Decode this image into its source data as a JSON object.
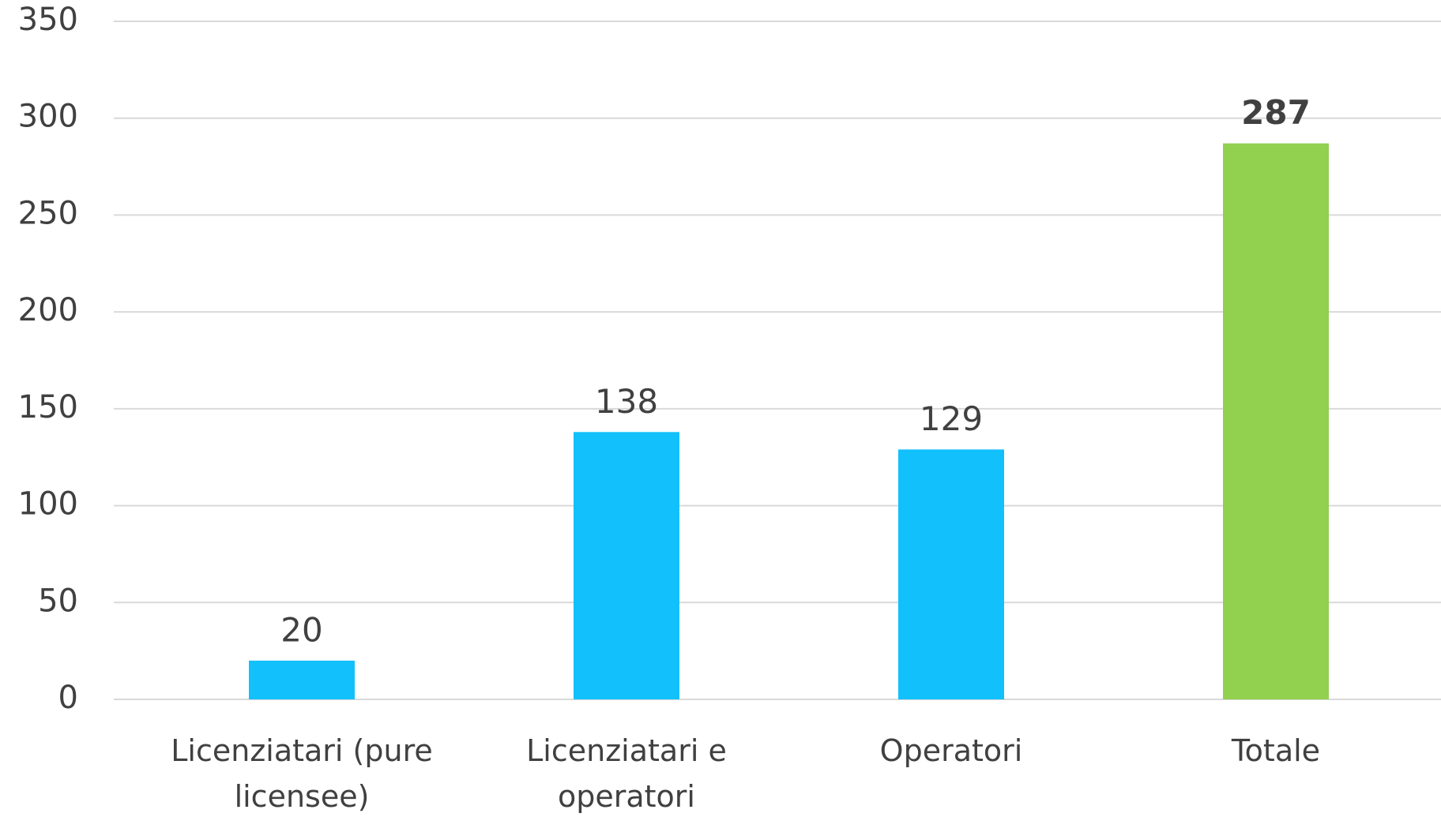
{
  "chart_data": {
    "type": "bar",
    "categories": [
      "Licenziatari (pure licensee)",
      "Licenziatari e operatori",
      "Operatori",
      "Totale"
    ],
    "values": [
      20,
      138,
      129,
      287
    ],
    "colors": [
      "#12c0fb",
      "#12c0fb",
      "#12c0fb",
      "#92d050"
    ],
    "ylim": [
      0,
      350
    ],
    "yticks": [
      0,
      50,
      100,
      150,
      200,
      250,
      300,
      350
    ],
    "grid": true
  }
}
